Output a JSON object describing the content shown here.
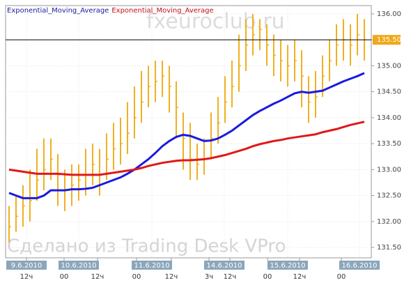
{
  "chart_data": {
    "type": "candlestick",
    "legend": [
      {
        "text": "Exponential_Moving_Average",
        "color": "#1a1aa0"
      },
      {
        "text": "Exponential_Moving_Average",
        "color": "#c0101a"
      }
    ],
    "watermark_top": "fxeuroclub.ru",
    "watermark_bottom": "Сделано из Trading Desk VPro",
    "x": [
      0,
      1,
      2,
      3,
      4,
      5,
      6,
      7,
      8,
      9,
      10,
      11,
      12,
      13,
      14,
      15,
      16,
      17,
      18,
      19,
      20,
      21,
      22,
      23,
      24,
      25,
      26,
      27,
      28,
      29,
      30,
      31,
      32,
      33,
      34,
      35,
      36,
      37,
      38,
      39,
      40,
      41,
      42,
      43,
      44,
      45,
      46,
      47,
      48,
      49,
      50,
      51
    ],
    "xlim": [
      -0.5,
      52
    ],
    "xticks": [
      {
        "value": 2.5,
        "label": "9.6.2010"
      },
      {
        "value": 10,
        "label": "10.6.2010"
      },
      {
        "value": 20.5,
        "label": "11.6.2010"
      },
      {
        "value": 30.9,
        "label": "14.6.2010"
      },
      {
        "value": 40,
        "label": "15.6.2010"
      },
      {
        "value": 50.3,
        "label": "16.6.2010"
      }
    ],
    "xticks_hours": [
      {
        "value": 2.5,
        "label": "12ч"
      },
      {
        "value": 7.9,
        "label": "00"
      },
      {
        "value": 12.7,
        "label": "12ч"
      },
      {
        "value": 18.3,
        "label": "00"
      },
      {
        "value": 23.3,
        "label": "12ч"
      },
      {
        "value": 28.7,
        "label": "3ч"
      },
      {
        "value": 31.7,
        "label": "12ч"
      },
      {
        "value": 37.1,
        "label": "00"
      },
      {
        "value": 41.7,
        "label": "12ч"
      },
      {
        "value": 47.7,
        "label": "00"
      }
    ],
    "ylim": [
      131.3,
      136.16
    ],
    "yticks": [
      {
        "value": 131.5,
        "label": "131.50"
      },
      {
        "value": 132,
        "label": "132.00"
      },
      {
        "value": 132.5,
        "label": "132.50"
      },
      {
        "value": 133,
        "label": "133.00"
      },
      {
        "value": 133.5,
        "label": "133.50"
      },
      {
        "value": 134,
        "label": "134.00"
      },
      {
        "value": 134.5,
        "label": "134.50"
      },
      {
        "value": 135,
        "label": "135.00"
      },
      {
        "value": 135.5,
        "label": "135.50"
      },
      {
        "value": 136,
        "label": "136.00"
      }
    ],
    "grid": true,
    "last": {
      "value": 135.5,
      "label": "135.50",
      "color": "#f0a818"
    },
    "series": [
      {
        "color": "#f0b020",
        "high": [
          132.3,
          132.5,
          132.7,
          133.0,
          133.4,
          133.6,
          133.6,
          133.3,
          133.0,
          133.1,
          133.1,
          133.4,
          133.5,
          133.4,
          133.7,
          133.9,
          134.0,
          134.3,
          134.6,
          134.9,
          135.0,
          135.1,
          135.1,
          135.0,
          134.7,
          134.1,
          133.9,
          133.5,
          133.6,
          134.1,
          134.4,
          134.8,
          135.1,
          135.6,
          135.9,
          136.0,
          135.9,
          135.8,
          135.6,
          135.5,
          135.4,
          135.5,
          135.3,
          134.8,
          134.9,
          135.2,
          135.5,
          135.8,
          135.9,
          135.8,
          136.0,
          135.9
        ],
        "low": [
          131.6,
          131.8,
          131.9,
          132.0,
          132.4,
          132.6,
          132.8,
          132.3,
          132.2,
          132.3,
          132.4,
          132.5,
          132.7,
          132.5,
          132.8,
          133.0,
          133.1,
          133.3,
          133.6,
          133.9,
          134.2,
          134.3,
          134.4,
          134.1,
          133.6,
          133.0,
          132.8,
          132.8,
          132.9,
          133.2,
          133.5,
          133.9,
          134.2,
          134.5,
          134.9,
          135.2,
          135.3,
          135.0,
          134.8,
          134.7,
          134.6,
          134.7,
          134.2,
          133.9,
          134.0,
          134.4,
          134.7,
          135.0,
          135.1,
          135.0,
          135.2,
          135.1
        ],
        "close": [
          131.9,
          132.1,
          132.3,
          132.4,
          132.8,
          133.0,
          133.2,
          132.9,
          132.6,
          132.7,
          132.8,
          132.9,
          133.1,
          132.9,
          133.2,
          133.4,
          133.5,
          133.7,
          134.0,
          134.3,
          134.6,
          134.7,
          134.8,
          134.6,
          134.2,
          133.6,
          133.2,
          133.1,
          133.2,
          133.6,
          133.9,
          134.3,
          134.6,
          135.0,
          135.4,
          135.6,
          135.7,
          135.4,
          135.2,
          135.1,
          135.0,
          135.1,
          134.8,
          134.3,
          134.4,
          134.8,
          135.1,
          135.4,
          135.5,
          135.4,
          135.6,
          135.5
        ]
      },
      {
        "color": "#1a1ae0",
        "values": [
          132.55,
          132.5,
          132.45,
          132.45,
          132.45,
          132.5,
          132.6,
          132.6,
          132.6,
          132.62,
          132.62,
          132.63,
          132.65,
          132.7,
          132.75,
          132.8,
          132.85,
          132.92,
          133.0,
          133.1,
          133.2,
          133.32,
          133.45,
          133.55,
          133.63,
          133.67,
          133.65,
          133.6,
          133.55,
          133.56,
          133.6,
          133.67,
          133.75,
          133.85,
          133.95,
          134.05,
          134.13,
          134.2,
          134.27,
          134.33,
          134.4,
          134.47,
          134.5,
          134.48,
          134.5,
          134.52,
          134.58,
          134.64,
          134.7,
          134.75,
          134.8,
          134.86
        ]
      },
      {
        "color": "#e01818",
        "values": [
          133.0,
          132.98,
          132.96,
          132.94,
          132.92,
          132.92,
          132.92,
          132.92,
          132.91,
          132.9,
          132.9,
          132.9,
          132.9,
          132.9,
          132.92,
          132.94,
          132.96,
          132.98,
          133.0,
          133.03,
          133.07,
          133.1,
          133.13,
          133.15,
          133.17,
          133.18,
          133.18,
          133.19,
          133.2,
          133.22,
          133.25,
          133.28,
          133.32,
          133.36,
          133.4,
          133.45,
          133.49,
          133.52,
          133.55,
          133.57,
          133.6,
          133.62,
          133.64,
          133.66,
          133.68,
          133.72,
          133.75,
          133.78,
          133.82,
          133.86,
          133.89,
          133.92
        ]
      }
    ]
  }
}
